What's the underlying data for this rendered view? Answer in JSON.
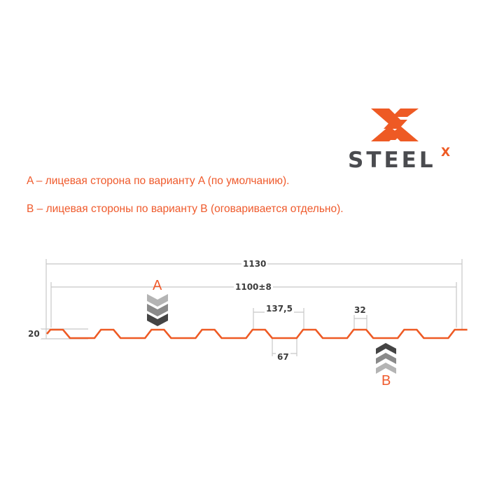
{
  "logo": {
    "text": "STEEL",
    "superscript": "X",
    "brand_color": "#ee5a24",
    "text_color": "#4a4b4f"
  },
  "notes": [
    "A – лицевая сторона по варианту A (по умолчанию).",
    "B – лицевая стороны по варианту B (оговаривается отдельно)."
  ],
  "dimensions": {
    "full_width": "1130",
    "useful_width": "1100±8",
    "height": "20",
    "pitch": "137,5",
    "bottom_width": "67",
    "top_width": "32"
  },
  "faces": {
    "a": "A",
    "b": "B"
  },
  "colors": {
    "profile": "#ee5a24",
    "dim_lines": "#c8c8c8",
    "labels": "#ef5a2c"
  }
}
